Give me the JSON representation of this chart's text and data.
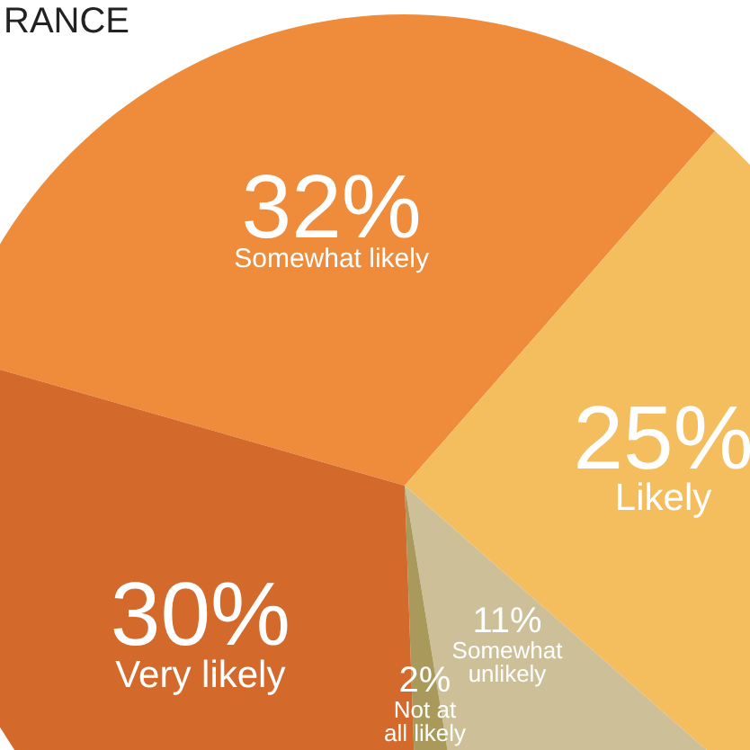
{
  "chart_data": {
    "type": "pie",
    "title": "RANCE",
    "categories": [
      "Somewhat likely",
      "Likely",
      "Somewhat\nunlikely",
      "Not at\nall likely",
      "Very likely"
    ],
    "values": [
      32,
      25,
      11,
      2,
      30
    ],
    "value_labels": [
      "32%",
      "25%",
      "11%",
      "2%",
      "30%"
    ],
    "colors": [
      "#ee8c3b",
      "#f4bd5e",
      "#cdbf98",
      "#a99a5c",
      "#d3692b"
    ]
  }
}
